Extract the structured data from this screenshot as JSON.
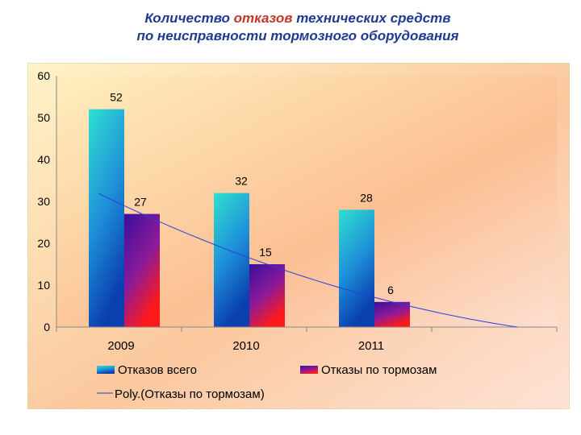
{
  "title_line1_pre": "Количество ",
  "title_line1_accent": "отказов",
  "title_line1_post": " технических средств",
  "title_line2": "по неисправности тормозного оборудования",
  "colors": {
    "title": "#1f3a93",
    "title_accent": "#c0392b",
    "series1": "#1e90d6",
    "series2": "#7a1a9a",
    "trendline": "#2a3fe0",
    "background": "#fbc79a"
  },
  "chart_data": {
    "type": "bar",
    "categories": [
      "2009",
      "2010",
      "2011"
    ],
    "series": [
      {
        "name": "Отказов всего",
        "values": [
          52,
          32,
          28
        ]
      },
      {
        "name": "Отказы по тормозам",
        "values": [
          27,
          15,
          6
        ]
      }
    ],
    "trendline": {
      "name": "Poly.(Отказы по тормозам)",
      "of_series": "Отказы по тормозам",
      "type": "polynomial"
    },
    "ylim": [
      0,
      60
    ],
    "yticks": [
      "0",
      "10",
      "20",
      "30",
      "40",
      "50",
      "60"
    ],
    "grid": false,
    "legend": "bottom",
    "data_labels": true
  }
}
